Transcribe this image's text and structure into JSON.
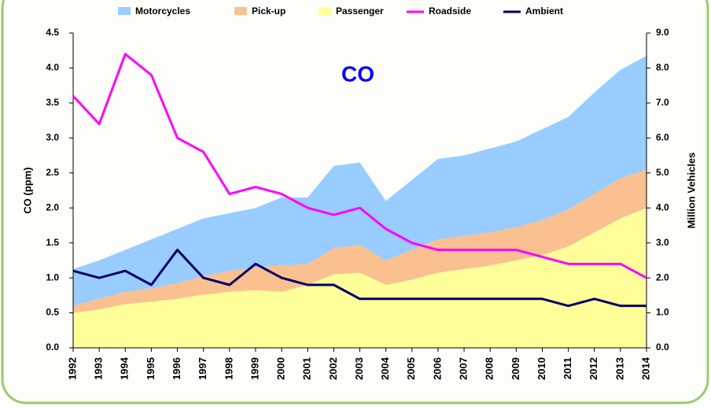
{
  "chart_data": {
    "type": "stacked-area-line",
    "title": "CO",
    "y_label": "CO (ppm)",
    "y2_label": "Million Vehicles",
    "categories": [
      "1992",
      "1993",
      "1994",
      "1995",
      "1996",
      "1997",
      "1998",
      "1999",
      "2000",
      "2001",
      "2002",
      "2003",
      "2004",
      "2005",
      "2006",
      "2007",
      "2008",
      "2009",
      "2010",
      "2011",
      "2012",
      "2013",
      "2014"
    ],
    "series": [
      {
        "name": "Motorcycles",
        "color": "#99ccff",
        "kind": "area",
        "axis": "y2",
        "values": [
          1.05,
          1.1,
          1.2,
          1.4,
          1.55,
          1.65,
          1.65,
          1.7,
          1.95,
          1.9,
          2.35,
          2.35,
          1.7,
          2.0,
          2.3,
          2.3,
          2.4,
          2.45,
          2.6,
          2.65,
          2.9,
          3.1,
          3.25
        ]
      },
      {
        "name": "Pick-up",
        "color": "#fac090",
        "kind": "area",
        "axis": "y2",
        "values": [
          0.2,
          0.3,
          0.35,
          0.38,
          0.45,
          0.53,
          0.6,
          0.65,
          0.75,
          0.6,
          0.75,
          0.8,
          0.7,
          0.85,
          0.95,
          0.95,
          0.95,
          0.95,
          1.0,
          1.05,
          1.1,
          1.15,
          1.1
        ]
      },
      {
        "name": "Passenger",
        "color": "#ffff99",
        "kind": "area",
        "axis": "y2",
        "values": [
          1.0,
          1.1,
          1.25,
          1.32,
          1.4,
          1.52,
          1.6,
          1.65,
          1.6,
          1.8,
          2.1,
          2.15,
          1.8,
          1.95,
          2.15,
          2.25,
          2.35,
          2.5,
          2.65,
          2.9,
          3.3,
          3.7,
          4.0
        ]
      },
      {
        "name": "Roadside",
        "color": "#ff00ff",
        "kind": "line",
        "values": [
          3.6,
          3.2,
          4.2,
          3.9,
          3.0,
          2.8,
          2.2,
          2.3,
          2.2,
          2.0,
          1.9,
          2.0,
          1.7,
          1.5,
          1.4,
          1.4,
          1.4,
          1.4,
          1.3,
          1.2,
          1.2,
          1.2,
          1.0
        ]
      },
      {
        "name": "Ambient",
        "color": "#000066",
        "kind": "line",
        "values": [
          1.1,
          1.0,
          1.1,
          0.9,
          1.4,
          1.0,
          0.9,
          1.2,
          1.0,
          0.9,
          0.9,
          0.7,
          0.7,
          0.7,
          0.7,
          0.7,
          0.7,
          0.7,
          0.7,
          0.6,
          0.7,
          0.6,
          0.6
        ]
      }
    ],
    "ylim": [
      0,
      4.5
    ],
    "yticks": [
      {
        "value": 0,
        "label": "0.0"
      },
      0.5,
      {
        "value": 1,
        "label": "1.0"
      },
      1.5,
      {
        "value": 2,
        "label": "2.0"
      },
      2.5,
      {
        "value": 3,
        "label": "3.0"
      },
      3.5,
      {
        "value": 4,
        "label": "4.0"
      },
      4.5
    ],
    "y2lim": [
      0,
      9
    ],
    "y2ticks": [
      {
        "value": 0,
        "label": "0.0"
      },
      {
        "value": 1,
        "label": "1.0"
      },
      {
        "value": 2,
        "label": "2.0"
      },
      {
        "value": 3,
        "label": "3.0"
      },
      {
        "value": 4,
        "label": "4.0"
      },
      {
        "value": 5,
        "label": "5.0"
      },
      {
        "value": 6,
        "label": "6.0"
      },
      {
        "value": 7,
        "label": "7.0"
      },
      {
        "value": 8,
        "label": "8.0"
      },
      {
        "value": 9,
        "label": "9.0"
      }
    ],
    "legend": "top"
  }
}
